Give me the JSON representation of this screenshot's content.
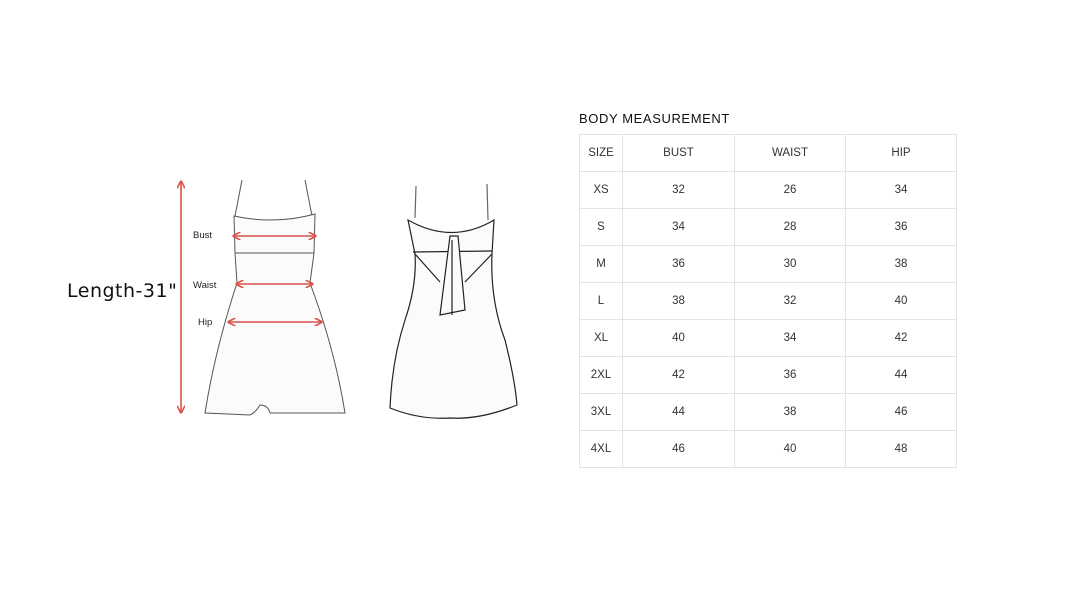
{
  "figure": {
    "length_label": "Length-31\"",
    "measure_labels": [
      "Bust",
      "Waist",
      "Hip"
    ],
    "arrow_color": "#d9534a"
  },
  "table": {
    "title": "BODY MEASUREMENT",
    "headers": [
      "SIZE",
      "BUST",
      "WAIST",
      "HIP"
    ],
    "rows": [
      [
        "XS",
        "32",
        "26",
        "34"
      ],
      [
        "S",
        "34",
        "28",
        "36"
      ],
      [
        "M",
        "36",
        "30",
        "38"
      ],
      [
        "L",
        "38",
        "32",
        "40"
      ],
      [
        "XL",
        "40",
        "34",
        "42"
      ],
      [
        "2XL",
        "42",
        "36",
        "44"
      ],
      [
        "3XL",
        "44",
        "38",
        "46"
      ],
      [
        "4XL",
        "46",
        "40",
        "48"
      ]
    ]
  }
}
